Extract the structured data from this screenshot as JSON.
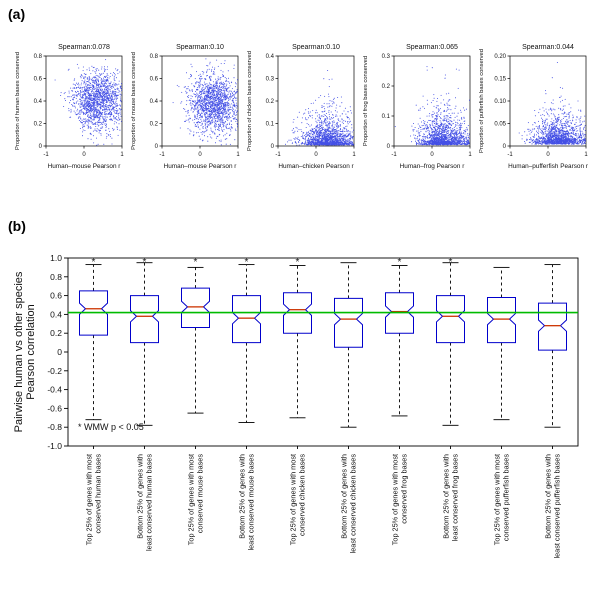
{
  "panels": {
    "a_label": "(a)",
    "b_label": "(b)"
  },
  "colors": {
    "point": "#2230e0",
    "box": "#0000cc",
    "median": "#cc3300",
    "green_line": "#00bb00",
    "axis": "#000000"
  },
  "chart_data": [
    {
      "type": "scatter",
      "title": "Spearman:0.078",
      "ylabel": "Proportion of human bases conserved",
      "xlabel": "Human–mouse Pearson r",
      "xlim": [
        -1,
        1
      ],
      "ylim": [
        0,
        0.8
      ],
      "yticks": [
        "0",
        "0.2",
        "0.4",
        "0.6",
        "0.8"
      ],
      "xticks": [
        "-1",
        "0",
        "1"
      ],
      "n_points": 1500,
      "seed": 11,
      "x_mean": 0.35,
      "x_sd": 0.32,
      "y_dist": "normal",
      "y_mean": 0.4,
      "y_sd": 0.13,
      "y_scale": 0
    },
    {
      "type": "scatter",
      "title": "Spearman:0.10",
      "ylabel": "Proportion of mouse bases conserved",
      "xlabel": "Human–mouse Pearson r",
      "xlim": [
        -1,
        1
      ],
      "ylim": [
        0,
        0.8
      ],
      "yticks": [
        "0",
        "0.2",
        "0.4",
        "0.6",
        "0.8"
      ],
      "xticks": [
        "-1",
        "0",
        "1"
      ],
      "n_points": 1500,
      "seed": 22,
      "x_mean": 0.35,
      "x_sd": 0.32,
      "y_dist": "normal",
      "y_mean": 0.37,
      "y_sd": 0.13,
      "y_scale": 0
    },
    {
      "type": "scatter",
      "title": "Spearman:0.10",
      "ylabel": "Proportion of chicken bases conserved",
      "xlabel": "Human–chicken Pearson r",
      "xlim": [
        -1,
        1
      ],
      "ylim": [
        0,
        0.4
      ],
      "yticks": [
        "0",
        "0.1",
        "0.2",
        "0.3",
        "0.4"
      ],
      "xticks": [
        "-1",
        "0",
        "1"
      ],
      "n_points": 1500,
      "seed": 33,
      "x_mean": 0.3,
      "x_sd": 0.33,
      "y_dist": "exp",
      "y_mean": 0,
      "y_sd": 0,
      "y_scale": 0.045
    },
    {
      "type": "scatter",
      "title": "Spearman:0.065",
      "ylabel": "Proportion of frog bases conserved",
      "xlabel": "Human–frog Pearson r",
      "xlim": [
        -1,
        1
      ],
      "ylim": [
        0,
        0.3
      ],
      "yticks": [
        "0",
        "0.1",
        "0.2",
        "0.3"
      ],
      "xticks": [
        "-1",
        "0",
        "1"
      ],
      "n_points": 1500,
      "seed": 44,
      "x_mean": 0.3,
      "x_sd": 0.33,
      "y_dist": "exp",
      "y_mean": 0,
      "y_sd": 0,
      "y_scale": 0.035
    },
    {
      "type": "scatter",
      "title": "Spearman:0.044",
      "ylabel": "Proportion of pufferfish bases conserved",
      "xlabel": "Human–pufferfish Pearson r",
      "xlim": [
        -1,
        1
      ],
      "ylim": [
        0,
        0.2
      ],
      "yticks": [
        "0",
        "0.05",
        "0.10",
        "0.15",
        "0.20"
      ],
      "xticks": [
        "-1",
        "0",
        "1"
      ],
      "n_points": 1500,
      "seed": 55,
      "x_mean": 0.28,
      "x_sd": 0.34,
      "y_dist": "exp",
      "y_mean": 0,
      "y_sd": 0,
      "y_scale": 0.022
    },
    {
      "type": "box",
      "ylabel_lines": [
        "Pairwise human vs other species",
        "Pearson correlation"
      ],
      "ylim": [
        -1,
        1
      ],
      "yticks": [
        "1.0",
        "0.8",
        "0.6",
        "0.4",
        "0.2",
        "0",
        "-0.2",
        "-0.4",
        "-0.6",
        "-0.8",
        "-1.0"
      ],
      "green_line": 0.42,
      "annotation": "* WMW p < 0.05",
      "star_symbol": "*",
      "boxes": [
        {
          "label_lines": [
            "Top 25% of genes with most",
            "conserved human bases"
          ],
          "q1": 0.18,
          "median": 0.46,
          "q3": 0.65,
          "lo": -0.72,
          "hi": 0.93,
          "star": true
        },
        {
          "label_lines": [
            "Bottom 25% of genes with",
            "least conserved human bases"
          ],
          "q1": 0.1,
          "median": 0.38,
          "q3": 0.6,
          "lo": -0.78,
          "hi": 0.95,
          "star": true
        },
        {
          "label_lines": [
            "Top 25% of genes with most",
            "conserved mouse bases"
          ],
          "q1": 0.26,
          "median": 0.48,
          "q3": 0.68,
          "lo": -0.65,
          "hi": 0.9,
          "star": true
        },
        {
          "label_lines": [
            "Bottom 25% of genes with",
            "least conserved mouse bases"
          ],
          "q1": 0.1,
          "median": 0.36,
          "q3": 0.6,
          "lo": -0.75,
          "hi": 0.93,
          "star": true
        },
        {
          "label_lines": [
            "Top 25% of genes with most",
            "conserved chicken bases"
          ],
          "q1": 0.2,
          "median": 0.45,
          "q3": 0.63,
          "lo": -0.7,
          "hi": 0.92,
          "star": true
        },
        {
          "label_lines": [
            "Bottom 25% of genes with",
            "least conserved chicken bases"
          ],
          "q1": 0.05,
          "median": 0.35,
          "q3": 0.57,
          "lo": -0.8,
          "hi": 0.95,
          "star": false
        },
        {
          "label_lines": [
            "Top 25% of genes with most",
            "conserved frog bases"
          ],
          "q1": 0.2,
          "median": 0.43,
          "q3": 0.63,
          "lo": -0.68,
          "hi": 0.92,
          "star": true
        },
        {
          "label_lines": [
            "Bottom 25% of genes with",
            "least conserved frog bases"
          ],
          "q1": 0.1,
          "median": 0.38,
          "q3": 0.6,
          "lo": -0.78,
          "hi": 0.95,
          "star": true
        },
        {
          "label_lines": [
            "Top 25% of genes with most",
            "conserved pufferfish bases"
          ],
          "q1": 0.1,
          "median": 0.35,
          "q3": 0.58,
          "lo": -0.72,
          "hi": 0.9,
          "star": false
        },
        {
          "label_lines": [
            "Bottom 25% of genes with",
            "least conserved pufferfish bases"
          ],
          "q1": 0.02,
          "median": 0.28,
          "q3": 0.52,
          "lo": -0.8,
          "hi": 0.93,
          "star": false
        }
      ]
    }
  ]
}
